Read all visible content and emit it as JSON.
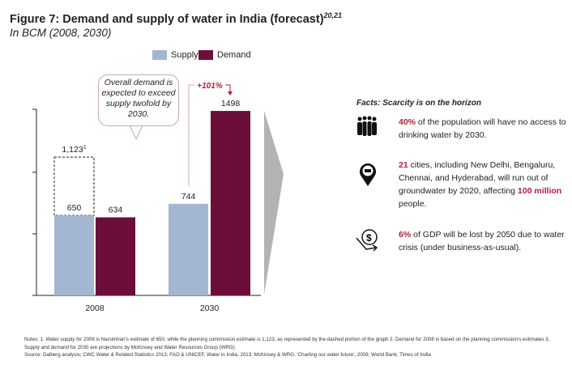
{
  "title": "Figure 7: Demand and supply of water in India (forecast)",
  "title_sup": "20,21",
  "subtitle": "In BCM (2008, 2030)",
  "callout": "Overall demand is expected to exceed supply twofold by 2030.",
  "growth_label": "+101%",
  "dashed_label": "1,123",
  "dashed_sup": "1",
  "colors": {
    "supply": "#a3b7d2",
    "demand": "#6b0f3a",
    "highlight": "#b0223a"
  },
  "chart_data": {
    "type": "bar",
    "categories": [
      "2008",
      "2030"
    ],
    "series": [
      {
        "name": "Supply",
        "values": [
          650,
          744
        ]
      },
      {
        "name": "Demand",
        "values": [
          634,
          1498
        ]
      }
    ],
    "annotations": [
      {
        "type": "dashed-extension",
        "category": "2008",
        "series": "Supply",
        "value": 1123,
        "label": "1,123"
      }
    ],
    "ylim": [
      0,
      1500
    ],
    "yticks": [
      500,
      1000
    ],
    "legend": "top"
  },
  "facts": {
    "title": "Facts: Scarcity is on the horizon",
    "items": [
      {
        "icon": "people-icon",
        "hl": "40%",
        "text": " of the population will have no access to drinking water by 2030."
      },
      {
        "icon": "map-pin-city-icon",
        "hl": "21",
        "text": " cities, including New Delhi, Bengaluru, Chennai, and Hyderabad, will run out of groundwater by 2020, affecting ",
        "hl2": "100 million",
        "text2": " people."
      },
      {
        "icon": "money-decline-icon",
        "hl": "6%",
        "text": " of GDP will be lost by 2050 due to water crisis (under business-as-usual)."
      }
    ]
  },
  "notes": "Notes: 1. Water supply for 2008 is Narsimhan's estimate of 650, while the planning commission estimate is 1,123, as represented by the dashed portion of the graph 2. Demand for 2008 is based on the planning commission's estimates 3. Supply and demand for 2030 are projections by McKinsey and Water Resources Group (WRG)",
  "source": "Source: Dalberg analysis; CWC Water & Related Statistics 2013; FAO & UNICEF, Water in India, 2013; McKinsey & WRG, 'Charting our water future', 2009; World Bank; Times of India"
}
